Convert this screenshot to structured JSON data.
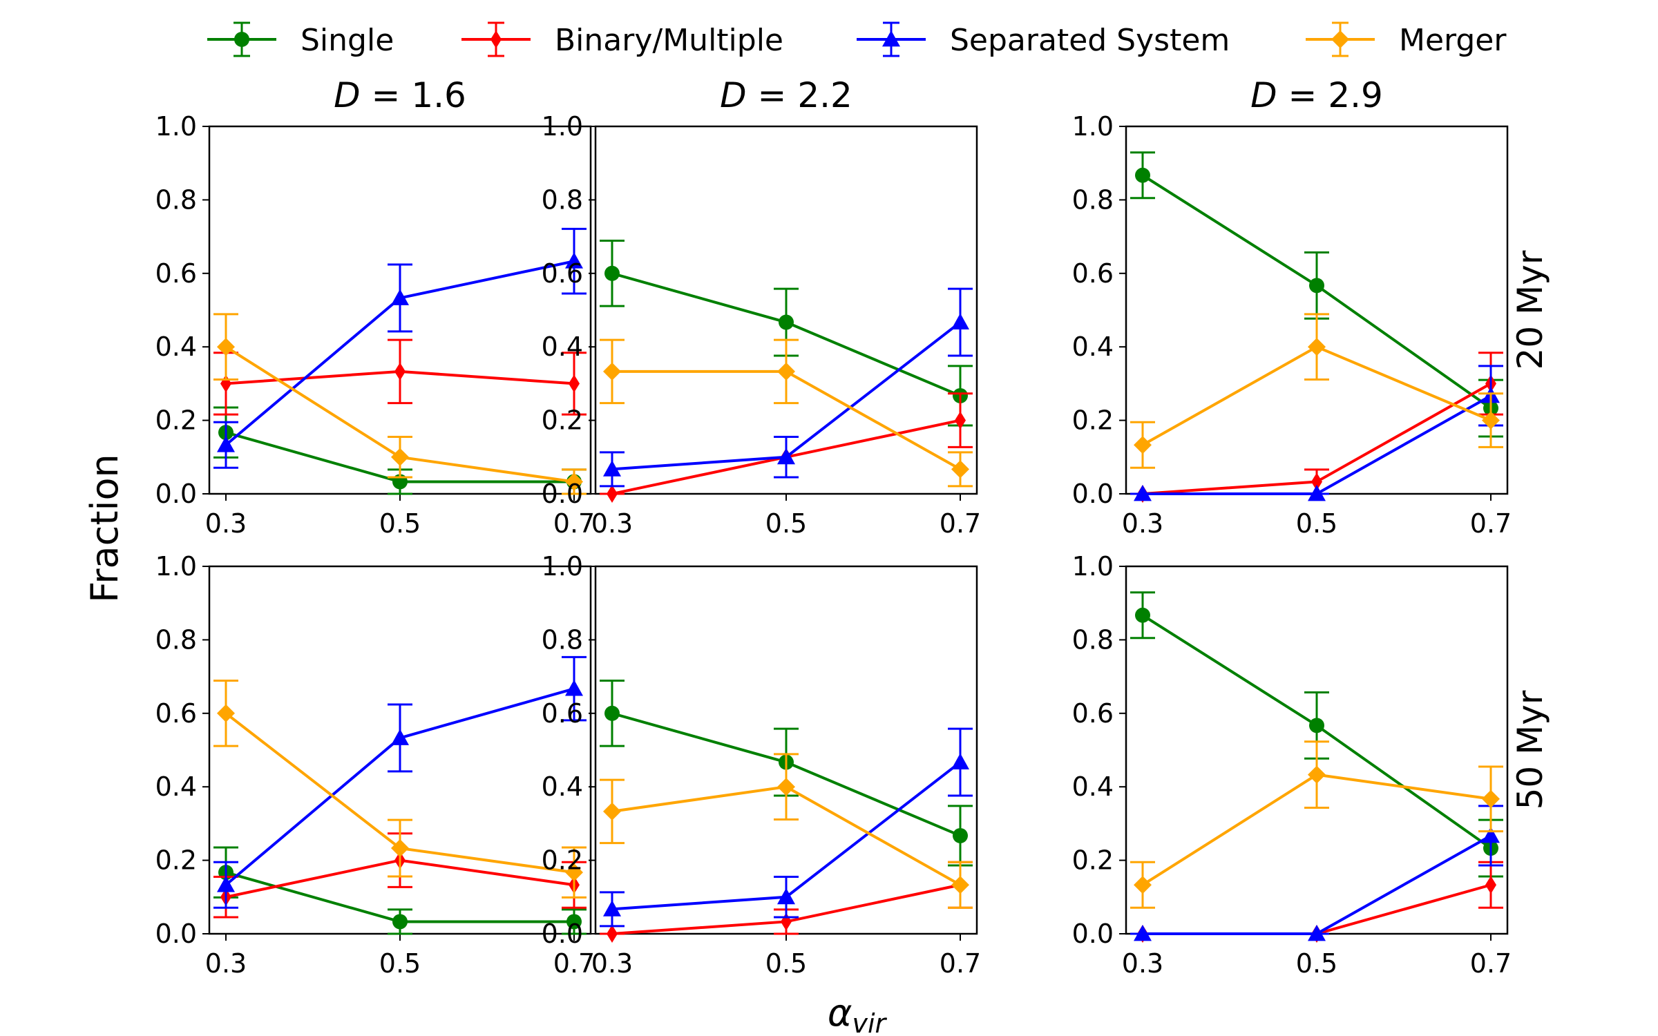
{
  "chart_data": {
    "type": "line",
    "xlabel": "α",
    "xlabel_sub": "vir",
    "ylabel": "Fraction",
    "ylim": [
      0,
      1
    ],
    "yticks": [
      "0.0",
      "0.2",
      "0.4",
      "0.6",
      "0.8",
      "1.0"
    ],
    "x": [
      0.3,
      0.5,
      0.7
    ],
    "xtick_labels": [
      "0.3",
      "0.5",
      "0.7"
    ],
    "columns": [
      {
        "prefix": "D",
        "value": " = 1.6"
      },
      {
        "prefix": "D",
        "value": " = 2.2"
      },
      {
        "prefix": "D",
        "value": " = 2.9"
      }
    ],
    "rows": [
      "20 Myr",
      "50 Myr"
    ],
    "legend": [
      {
        "label": "Single",
        "color": "#008000",
        "marker": "circle"
      },
      {
        "label": "Binary/Multiple",
        "color": "#ff0000",
        "marker": "diamond-thin"
      },
      {
        "label": "Separated System",
        "color": "#0000ff",
        "marker": "triangle"
      },
      {
        "label": "Merger",
        "color": "#ffa500",
        "marker": "diamond"
      }
    ],
    "panels": [
      {
        "row": 0,
        "col": 0,
        "series": [
          {
            "name": "Single",
            "values": [
              0.167,
              0.033,
              0.033
            ],
            "errors": [
              0.068,
              0.033,
              0.033
            ]
          },
          {
            "name": "Binary/Multiple",
            "values": [
              0.3,
              0.333,
              0.3
            ],
            "errors": [
              0.084,
              0.086,
              0.084
            ]
          },
          {
            "name": "Separated System",
            "values": [
              0.133,
              0.533,
              0.633
            ],
            "errors": [
              0.062,
              0.091,
              0.088
            ]
          },
          {
            "name": "Merger",
            "values": [
              0.4,
              0.1,
              0.033
            ],
            "errors": [
              0.089,
              0.055,
              0.033
            ]
          }
        ]
      },
      {
        "row": 0,
        "col": 1,
        "series": [
          {
            "name": "Single",
            "values": [
              0.6,
              0.467,
              0.267
            ],
            "errors": [
              0.089,
              0.091,
              0.081
            ]
          },
          {
            "name": "Binary/Multiple",
            "values": [
              0.0,
              0.1,
              0.2
            ],
            "errors": [
              0.0,
              0.055,
              0.073
            ]
          },
          {
            "name": "Separated System",
            "values": [
              0.067,
              0.1,
              0.467
            ],
            "errors": [
              0.046,
              0.055,
              0.091
            ]
          },
          {
            "name": "Merger",
            "values": [
              0.333,
              0.333,
              0.067
            ],
            "errors": [
              0.086,
              0.086,
              0.046
            ]
          }
        ]
      },
      {
        "row": 0,
        "col": 2,
        "series": [
          {
            "name": "Single",
            "values": [
              0.867,
              0.567,
              0.233
            ],
            "errors": [
              0.062,
              0.09,
              0.077
            ]
          },
          {
            "name": "Binary/Multiple",
            "values": [
              0.0,
              0.033,
              0.3
            ],
            "errors": [
              0.0,
              0.033,
              0.084
            ]
          },
          {
            "name": "Separated System",
            "values": [
              0.0,
              0.0,
              0.267
            ],
            "errors": [
              0.0,
              0.0,
              0.081
            ]
          },
          {
            "name": "Merger",
            "values": [
              0.133,
              0.4,
              0.2
            ],
            "errors": [
              0.062,
              0.089,
              0.073
            ]
          }
        ]
      },
      {
        "row": 1,
        "col": 0,
        "series": [
          {
            "name": "Single",
            "values": [
              0.167,
              0.033,
              0.033
            ],
            "errors": [
              0.068,
              0.033,
              0.033
            ]
          },
          {
            "name": "Binary/Multiple",
            "values": [
              0.1,
              0.2,
              0.133
            ],
            "errors": [
              0.055,
              0.073,
              0.062
            ]
          },
          {
            "name": "Separated System",
            "values": [
              0.133,
              0.533,
              0.667
            ],
            "errors": [
              0.062,
              0.091,
              0.086
            ]
          },
          {
            "name": "Merger",
            "values": [
              0.6,
              0.233,
              0.167
            ],
            "errors": [
              0.089,
              0.077,
              0.068
            ]
          }
        ]
      },
      {
        "row": 1,
        "col": 1,
        "series": [
          {
            "name": "Single",
            "values": [
              0.6,
              0.467,
              0.267
            ],
            "errors": [
              0.089,
              0.091,
              0.081
            ]
          },
          {
            "name": "Binary/Multiple",
            "values": [
              0.0,
              0.033,
              0.133
            ],
            "errors": [
              0.0,
              0.033,
              0.062
            ]
          },
          {
            "name": "Separated System",
            "values": [
              0.067,
              0.1,
              0.467
            ],
            "errors": [
              0.046,
              0.055,
              0.091
            ]
          },
          {
            "name": "Merger",
            "values": [
              0.333,
              0.4,
              0.133
            ],
            "errors": [
              0.086,
              0.089,
              0.062
            ]
          }
        ]
      },
      {
        "row": 1,
        "col": 2,
        "series": [
          {
            "name": "Single",
            "values": [
              0.867,
              0.567,
              0.233
            ],
            "errors": [
              0.062,
              0.09,
              0.077
            ]
          },
          {
            "name": "Binary/Multiple",
            "values": [
              0.0,
              0.0,
              0.133
            ],
            "errors": [
              0.0,
              0.0,
              0.062
            ]
          },
          {
            "name": "Separated System",
            "values": [
              0.0,
              0.0,
              0.267
            ],
            "errors": [
              0.0,
              0.0,
              0.081
            ]
          },
          {
            "name": "Merger",
            "values": [
              0.133,
              0.433,
              0.367
            ],
            "errors": [
              0.062,
              0.09,
              0.088
            ]
          }
        ]
      }
    ]
  }
}
